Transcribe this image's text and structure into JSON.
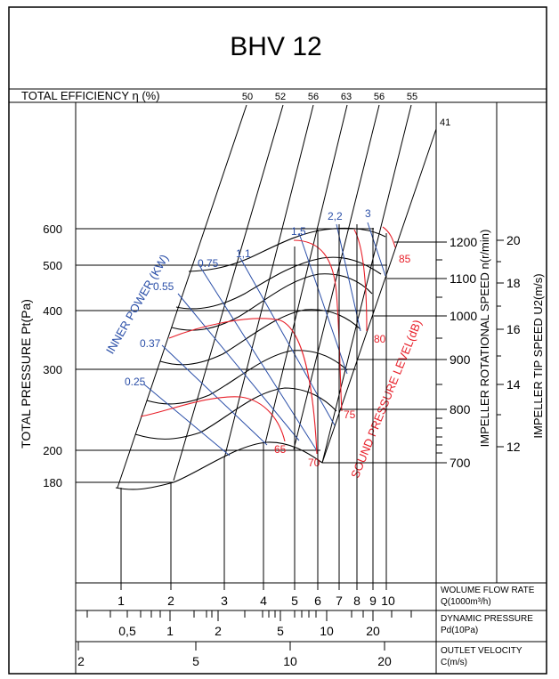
{
  "chart_data": {
    "type": "line",
    "title": "BHV 12",
    "colors": {
      "black": "#000000",
      "power": "#2b4fa8",
      "sound": "#e8202a"
    },
    "efficiency": {
      "label": "TOTAL EFFICIENCY η (%)",
      "values": [
        "50",
        "52",
        "56",
        "63",
        "56",
        "55"
      ],
      "end_label": "41"
    },
    "pressure_axis": {
      "label": "TOTAL PRESSURE Pt(Pa)",
      "ticks": [
        "600",
        "500",
        "400",
        "300",
        "200",
        "180"
      ]
    },
    "speed_axis": {
      "label": "IMPELLER ROTATIONAL SPEED n(r/min)",
      "ticks": [
        "1200",
        "1100",
        "1000",
        "900",
        "800",
        "700"
      ]
    },
    "tip_axis": {
      "label": "IMPELLER TIP SPEED U2(m/s)",
      "ticks": [
        "20",
        "18",
        "16",
        "14",
        "12"
      ]
    },
    "power": {
      "label": "INNER POWER (KW)",
      "values": [
        "0.25",
        "0.37",
        "0.55",
        "0.75",
        "1,1",
        "1,5",
        "2,2",
        "3"
      ]
    },
    "sound": {
      "label": "SOUND PRESSURE LEVEL(dB)",
      "values": [
        "65",
        "70",
        "75",
        "80",
        "85"
      ]
    },
    "flow_axis": {
      "ticks": [
        "1",
        "2",
        "3",
        "4",
        "5",
        "6",
        "7",
        "8",
        "9",
        "10"
      ],
      "label1": "WOLUME FLOW RATE",
      "label2": "Q(1000m³/h)"
    },
    "dyn_axis": {
      "ticks": [
        "0,5",
        "1",
        "2",
        "5",
        "10",
        "20"
      ],
      "label1": "DYNAMIC PRESSURE",
      "label2": "Pd(10Pa)"
    },
    "vel_axis": {
      "ticks": [
        "2",
        "5",
        "10",
        "20"
      ],
      "label1": "OUTLET VELOCITY",
      "label2": "C(m/s)"
    }
  }
}
